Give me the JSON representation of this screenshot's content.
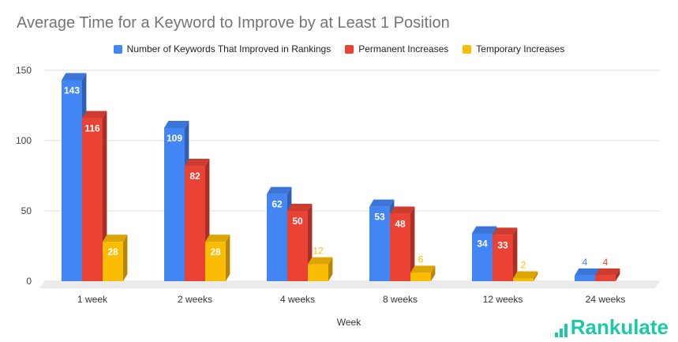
{
  "chart_data": {
    "type": "bar",
    "title": "Average Time for a Keyword to Improve by at Least 1 Position",
    "xlabel": "Week",
    "ylabel": "",
    "categories": [
      "1 week",
      "2 weeks",
      "4 weeks",
      "8 weeks",
      "12 weeks",
      "24 weeks"
    ],
    "series": [
      {
        "name": "Number of Keywords That Improved in Rankings",
        "color": "#4285f4",
        "values": [
          143,
          109,
          62,
          53,
          34,
          4
        ]
      },
      {
        "name": "Permanent Increases",
        "color": "#ea4335",
        "values": [
          116,
          82,
          50,
          48,
          33,
          4
        ]
      },
      {
        "name": "Temporary Increases",
        "color": "#fbbc04",
        "values": [
          28,
          28,
          12,
          6,
          2,
          null
        ]
      }
    ],
    "y_ticks": [
      0,
      50,
      100,
      150
    ],
    "ylim": [
      0,
      150
    ],
    "grid": true,
    "legend_position": "top",
    "three_d": true
  },
  "brand": {
    "name": "Rankulate",
    "icon": "bar-chart-icon",
    "color": "#1cc8a8"
  }
}
